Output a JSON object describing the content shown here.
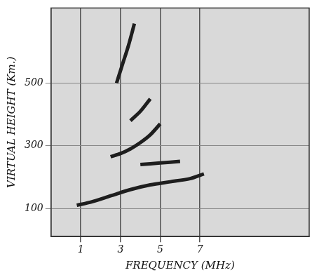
{
  "chart_data": {
    "type": "line",
    "xlabel": "FREQUENCY (MHz)",
    "ylabel": "VIRTUAL HEIGHT (Km.)",
    "xlim": [
      -0.5,
      12.5
    ],
    "xticks": [
      1,
      3,
      5,
      7
    ],
    "ylim": [
      10,
      740
    ],
    "yticks": [
      100,
      300,
      500
    ],
    "grid": true,
    "tick_labels": true,
    "series": [
      {
        "color": "#1e1e1e",
        "line_style": "solid",
        "marker": "none",
        "x": [
          0.8,
          1.5,
          2.5,
          3.5,
          4.5,
          5.5,
          6.5,
          7.2
        ],
        "values": [
          110,
          120,
          140,
          160,
          175,
          185,
          195,
          210
        ]
      },
      {
        "color": "#1e1e1e",
        "line_style": "solid",
        "marker": "none",
        "x": [
          4,
          5,
          6
        ],
        "values": [
          240,
          245,
          250
        ]
      },
      {
        "color": "#1e1e1e",
        "line_style": "solid",
        "marker": "none",
        "x": [
          2.5,
          3,
          3.5,
          4,
          4.5,
          5
        ],
        "values": [
          265,
          275,
          290,
          310,
          335,
          370
        ]
      },
      {
        "color": "#1e1e1e",
        "line_style": "solid",
        "marker": "none",
        "x": [
          3.5,
          4,
          4.5
        ],
        "values": [
          380,
          410,
          450
        ]
      },
      {
        "color": "#1e1e1e",
        "line_style": "solid",
        "marker": "none",
        "x": [
          2.8,
          3.1,
          3.4,
          3.7
        ],
        "values": [
          500,
          560,
          620,
          690
        ]
      }
    ]
  }
}
